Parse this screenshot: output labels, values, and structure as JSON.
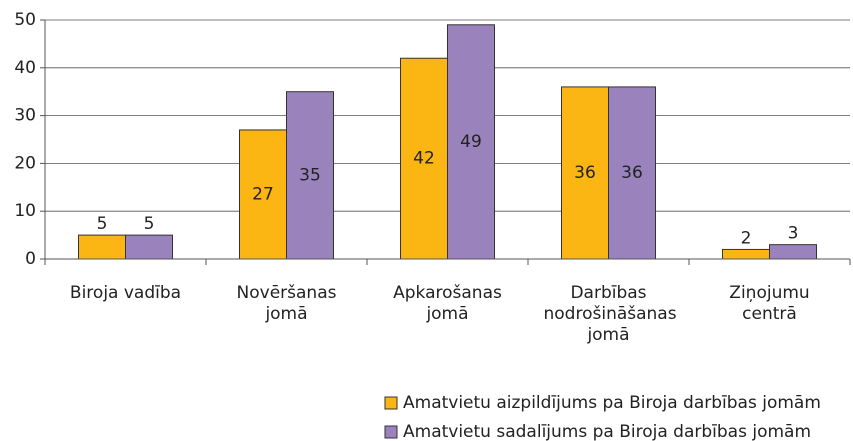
{
  "chart_data": {
    "type": "bar",
    "categories": [
      "Biroja vadība",
      "Novēršanas jomā",
      "Apkarošanas jomā",
      "Darbības nodrošināšanas jomā",
      "Ziņojumu centrā"
    ],
    "series": [
      {
        "name": "Amatvietu aizpildījums pa Biroja darbības jomām",
        "color": "#fbb613",
        "values": [
          5,
          27,
          42,
          36,
          2
        ]
      },
      {
        "name": "Amatvietu sadalījums pa Biroja darbības jomām",
        "color": "#9a83bd",
        "values": [
          5,
          35,
          49,
          36,
          3
        ]
      }
    ],
    "ylim": [
      0,
      50
    ],
    "yticks": [
      0,
      10,
      20,
      30,
      40,
      50
    ],
    "grid": true,
    "legend": "bottom"
  }
}
